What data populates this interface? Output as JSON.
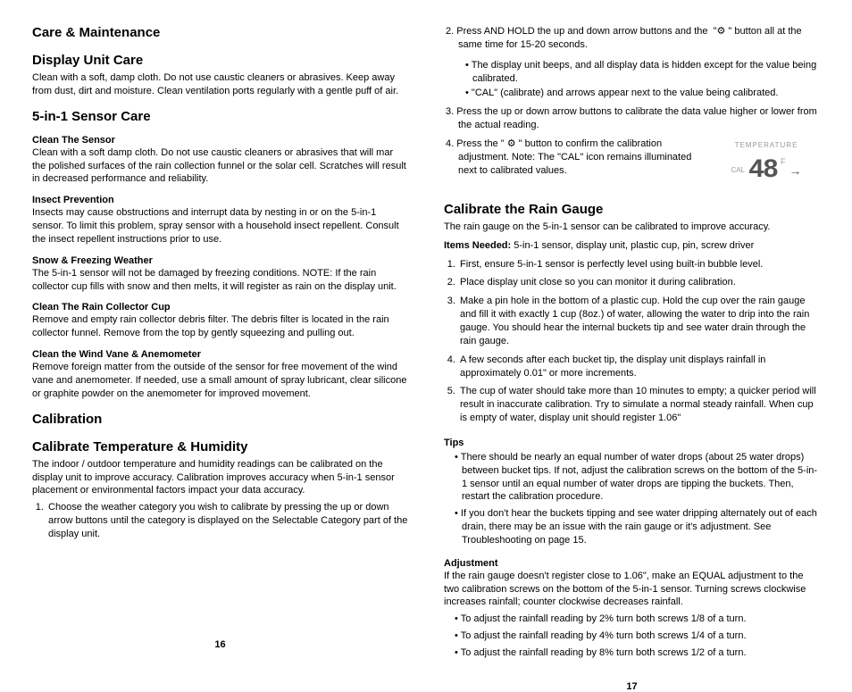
{
  "left": {
    "h_care": "Care & Maintenance",
    "h_display": "Display Unit Care",
    "p_display": "Clean with a soft, damp cloth. Do not use caustic cleaners or abrasives. Keep away from dust, dirt and moisture. Clean ventilation ports regularly with a gentle puff of air.",
    "h_5in1": "5-in-1 Sensor Care",
    "h_clean_sensor": "Clean The Sensor",
    "p_clean_sensor": "Clean with a soft damp cloth. Do not use caustic cleaners or abrasives that will mar the polished surfaces of the rain collection funnel or the solar cell. Scratches will result in decreased performance and reliability.",
    "h_insect": "Insect Prevention",
    "p_insect": "Insects may cause obstructions and interrupt data by nesting in or on the 5-in-1 sensor. To limit this problem, spray sensor with a household insect repellent. Consult the insect repellent instructions prior to use.",
    "h_snow": "Snow & Freezing Weather",
    "p_snow": "The 5-in-1 sensor will not be damaged by freezing conditions. NOTE: If the rain collector cup fills with snow and then melts, it will register as rain on the display unit.",
    "h_rain_cup": "Clean The Rain Collector Cup",
    "p_rain_cup": "Remove and empty  rain collector debris filter. The debris filter is located in the rain collector funnel. Remove from the top by gently squeezing and pulling out.",
    "h_wind": "Clean the Wind Vane & Anemometer",
    "p_wind": "Remove foreign matter from the outside of the sensor for free movement of the wind vane and anemometer. If needed, use a small amount of spray lubricant, clear silicone or graphite powder on the anemometer for improved movement.",
    "h_calibration": "Calibration",
    "h_cal_temp": "Calibrate Temperature & Humidity",
    "p_cal_temp": "The indoor / outdoor temperature and humidity readings can be calibrated on the display unit to improve accuracy. Calibration improves accuracy when 5-in-1 sensor placement or environmental factors impact your data accuracy.",
    "step1": "Choose the weather category you wish to calibrate by pressing the up or down arrow buttons until the category is displayed on the Selectable Category part of the display unit.",
    "page_num": "16"
  },
  "right": {
    "step2": "Press AND HOLD the up and down arrow buttons and the  \"⚙ \" button all at the same time for 15-20 seconds.",
    "step2_b1": "The display unit beeps, and all display data is hidden except for the value being calibrated.",
    "step2_b2": "\"CAL\" (calibrate) and arrows appear next to the value being calibrated.",
    "step3": "Press the up or down arrow buttons to calibrate the data value higher or lower from the actual reading.",
    "step4": "Press the \" ⚙ \" button to confirm the calibration adjustment. Note: The \"CAL\" icon remains illuminated next to calibrated values.",
    "lcd_title": "TEMPERATURE",
    "lcd_cal": "CAL",
    "lcd_digits": "48",
    "lcd_f": "F",
    "h_cal_rain": "Calibrate the Rain Gauge",
    "p_cal_rain": "The rain gauge on the 5-in-1 sensor can be calibrated to improve accuracy.",
    "items_label": "Items Needed:",
    "items_text": " 5-in-1 sensor, display unit, plastic cup, pin, screw driver",
    "r1": "First, ensure 5-in-1 sensor is perfectly level using built-in bubble level.",
    "r2": "Place display unit close so you can monitor it during calibration.",
    "r3": "Make a pin hole in the bottom of a plastic cup. Hold the cup over the rain gauge and fill it with exactly 1 cup (8oz.) of water, allowing the water to drip into the rain gauge. You should hear the internal buckets tip and see water drain through the rain gauge.",
    "r4": "A few seconds after each bucket tip, the display unit displays rainfall in approximately 0.01\" or more increments.",
    "r5": "The cup of water should take more than 10 minutes to empty; a quicker period will result in inaccurate calibration. Try to simulate a normal steady rainfall. When cup is empty of water, display unit should register 1.06\"",
    "h_tips": "Tips",
    "tip1": "There should be nearly an equal number of water drops (about 25 water drops) between bucket tips. If not, adjust the calibration screws on the bottom of the 5-in-1 sensor until an equal number of water drops are tipping the buckets. Then, restart the calibration procedure.",
    "tip2": "If you don't hear the buckets tipping and see water dripping alternately out of each drain, there may be an issue with the rain gauge or it's adjustment. See Troubleshooting on page 15.",
    "h_adjustment": "Adjustment",
    "p_adjustment": "If the rain gauge doesn't register close to 1.06\", make an EQUAL adjustment to the two calibration screws on the bottom of the 5-in-1 sensor. Turning screws clockwise increases rainfall; counter clockwise decreases rainfall.",
    "adj1": "To adjust the rainfall reading by 2% turn both screws 1/8  of a turn.",
    "adj2": "To adjust the rainfall reading by 4% turn both screws 1/4 of a turn.",
    "adj3": "To adjust the rainfall reading by 8% turn both screws 1/2 of a turn.",
    "page_num": "17"
  }
}
